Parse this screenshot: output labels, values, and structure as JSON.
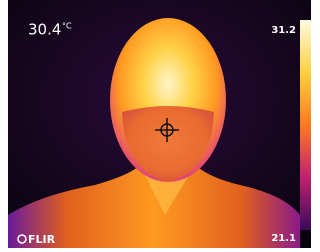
{
  "reading": {
    "value": "30.4",
    "unit": "°C"
  },
  "scale": {
    "max": "31.2",
    "min": "21.1"
  },
  "logo": "FLIR"
}
